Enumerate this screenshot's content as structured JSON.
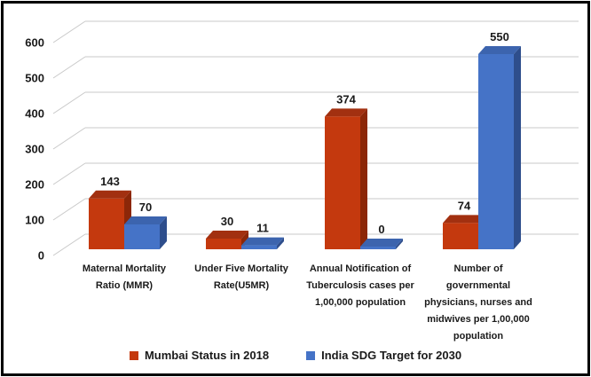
{
  "chart_data": {
    "type": "bar",
    "style": "3d-clustered-column",
    "title": "",
    "categories": [
      "Maternal Mortality\nRatio (MMR)",
      "Under Five Mortality\nRate(U5MR)",
      "Annual Notification of\nTuberculosis cases per\n1,00,000 population",
      "Number of\ngovernmental\nphysicians, nurses and\nmidwives per 1,00,000\npopulation"
    ],
    "series": [
      {
        "name": "Mumbai Status in 2018",
        "values": [
          143,
          30,
          374,
          74
        ],
        "colors": {
          "front": "#c4390e",
          "top": "#a23010",
          "side": "#8c2708"
        }
      },
      {
        "name": "India SDG Target for 2030",
        "values": [
          70,
          11,
          0,
          550
        ],
        "colors": {
          "front": "#4573c7",
          "top": "#3c64ae",
          "side": "#2e4e8c"
        }
      }
    ],
    "ylim": [
      0,
      600
    ],
    "yticks": [
      0,
      100,
      200,
      300,
      400,
      500,
      600
    ],
    "grid": true,
    "data_labels": true,
    "legend_position": "bottom",
    "axis": {
      "text_color": "#1a1a1a",
      "grid_color": "#c9c9c9"
    }
  }
}
